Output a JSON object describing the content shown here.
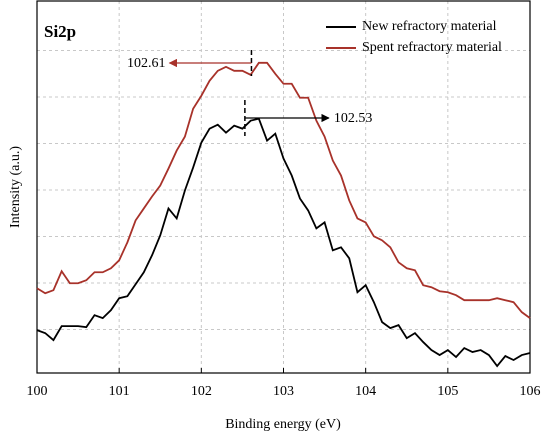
{
  "chart_data": {
    "type": "line",
    "title": "Si2p",
    "x_label": "Binding energy (eV)",
    "y_label": "Intensity (a.u.)",
    "x": [
      100,
      100.1,
      100.2,
      100.3,
      100.4,
      100.5,
      100.6,
      100.7,
      100.8,
      100.9,
      101,
      101.1,
      101.2,
      101.3,
      101.4,
      101.5,
      101.6,
      101.7,
      101.8,
      101.9,
      102,
      102.1,
      102.2,
      102.3,
      102.4,
      102.5,
      102.6,
      102.7,
      102.8,
      102.9,
      103,
      103.1,
      103.2,
      103.3,
      103.4,
      103.5,
      103.6,
      103.7,
      103.8,
      103.9,
      104,
      104.1,
      104.2,
      104.3,
      104.4,
      104.5,
      104.6,
      104.7,
      104.8,
      104.9,
      105,
      105.1,
      105.2,
      105.3,
      105.4,
      105.5,
      105.6,
      105.7,
      105.8,
      105.9,
      106
    ],
    "series": [
      {
        "name": "New refractory material",
        "color": "#000000",
        "values": [
          43,
          40,
          33,
          47,
          47,
          47,
          46,
          58,
          55,
          63,
          75,
          77,
          89,
          101,
          118,
          138,
          165,
          155,
          183,
          206,
          231,
          245,
          249,
          241,
          248,
          245,
          253,
          255,
          233,
          240,
          215,
          198,
          175,
          163,
          145,
          151,
          123,
          126,
          115,
          81,
          88,
          71,
          51,
          45,
          48,
          35,
          40,
          31,
          23,
          18,
          23,
          16,
          25,
          21,
          23,
          18,
          7,
          17,
          13,
          18,
          20
        ]
      },
      {
        "name": "Spent refractory material",
        "color": "#a8322a",
        "values": [
          85,
          80,
          83,
          102,
          90,
          90,
          93,
          101,
          101,
          105,
          113,
          131,
          153,
          165,
          177,
          188,
          205,
          223,
          237,
          265,
          278,
          293,
          303,
          307,
          303,
          303,
          299,
          311,
          311,
          300,
          290,
          290,
          276,
          276,
          253,
          237,
          213,
          198,
          173,
          155,
          151,
          137,
          133,
          126,
          111,
          105,
          103,
          88,
          86,
          82,
          81,
          78,
          73,
          73,
          73,
          73,
          75,
          73,
          71,
          61,
          55
        ]
      }
    ],
    "peaks": [
      {
        "value": 102.53,
        "series": 0
      },
      {
        "value": 102.61,
        "series": 1
      }
    ],
    "xlim": [
      100,
      106
    ],
    "xticks": [
      100,
      101,
      102,
      103,
      104,
      105,
      106
    ],
    "ylim": [
      0,
      373
    ],
    "grid": true,
    "legend": "upper right"
  }
}
